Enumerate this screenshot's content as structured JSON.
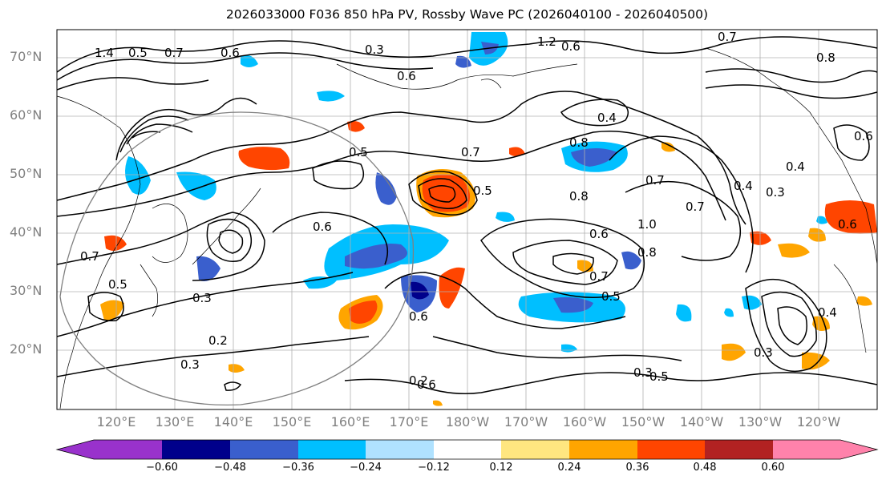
{
  "title": "2026033000 F036 850 hPa PV, Rossby Wave PC (2026040100 - 2026040500)",
  "lat_labels": [
    "70°N",
    "60°N",
    "50°N",
    "40°N",
    "30°N",
    "20°N"
  ],
  "lon_labels": [
    "120°E",
    "130°E",
    "140°E",
    "150°E",
    "160°E",
    "170°E",
    "180°W",
    "170°W",
    "160°W",
    "150°W",
    "140°W",
    "130°W",
    "120°W"
  ],
  "colorbar": {
    "ticks": [
      "−0.60",
      "−0.48",
      "−0.36",
      "−0.24",
      "−0.12",
      "0.12",
      "0.24",
      "0.36",
      "0.48",
      "0.60"
    ],
    "colors": [
      "#9932cc",
      "#00008b",
      "#3a5fcd",
      "#00bfff",
      "#b0e2ff",
      "#ffffff",
      "#ffe680",
      "#ffa500",
      "#ff4500",
      "#b22222",
      "#ff82ab"
    ]
  },
  "contour_labels": [
    "1.4",
    "0.5",
    "0.7",
    "0.6",
    "0.3",
    "1.2",
    "0.6",
    "0.7",
    "0.8",
    "0.6",
    "0.4",
    "0.5",
    "0.7",
    "0.7",
    "0.5",
    "0.8",
    "1.0",
    "0.7",
    "0.6",
    "0.6",
    "0.8",
    "0.3",
    "0.4",
    "0.3",
    "0.7",
    "0.6",
    "0.7",
    "0.5",
    "0.4",
    "0.5",
    "0.3",
    "0.6",
    "0.2",
    "0.3",
    "0.3",
    "0.6",
    "0.5",
    "0.6",
    "0.8",
    "0.4",
    "0.2"
  ],
  "colors": {
    "grid": "#b0b0b0",
    "contour": "#000000",
    "frame": "#000000",
    "tick_text": "#808080"
  }
}
